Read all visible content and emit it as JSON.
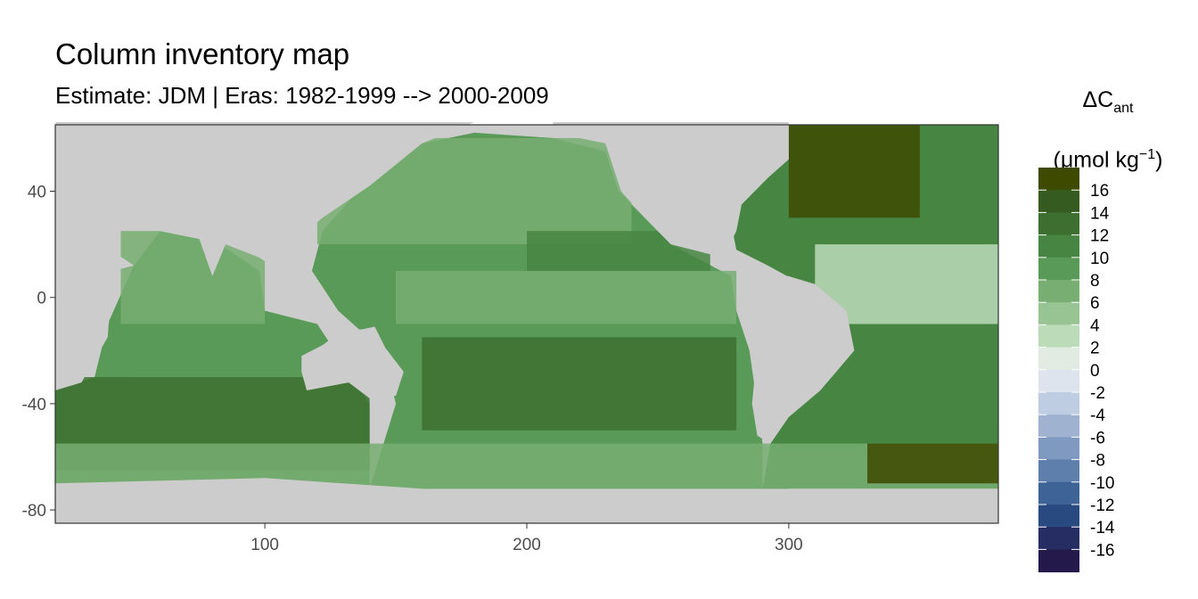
{
  "chart_data": {
    "type": "heatmap",
    "title": "Column inventory map",
    "subtitle": "Estimate: JDM  | Eras: 1982-1999 --> 2000-2009",
    "legend": {
      "title_main": "ΔC",
      "title_sub": "ant",
      "title_unit_open": "(μmol kg",
      "title_unit_sup": "−1",
      "title_unit_close": ")",
      "placement": "right",
      "breaks": [
        16,
        14,
        12,
        10,
        8,
        6,
        4,
        2,
        0,
        -2,
        -4,
        -6,
        -8,
        -10,
        -12,
        -14,
        -16
      ],
      "colors": [
        "#3e4a00",
        "#355b20",
        "#3d7030",
        "#468542",
        "#5a9a58",
        "#78ae72",
        "#98c494",
        "#bcdbb8",
        "#e1ebe1",
        "#dde4ee",
        "#bfcde2",
        "#9fb3d1",
        "#7f99c0",
        "#5e7fab",
        "#3e6396",
        "#284a80",
        "#252d63",
        "#23194a"
      ]
    },
    "x_axis": {
      "ticks": [
        100,
        200,
        300
      ],
      "range": [
        20,
        380
      ]
    },
    "y_axis": {
      "ticks": [
        40,
        0,
        -40,
        -80
      ],
      "range": [
        -85,
        65
      ]
    },
    "colors": {
      "land": "#cccccc",
      "panel_border": "#333333",
      "tick_text": "#4d4d4d"
    },
    "regions": [
      {
        "name": "indian-south",
        "lon": [
          20,
          140
        ],
        "lat": [
          -65,
          -30
        ],
        "value": 12
      },
      {
        "name": "indian-mid",
        "lon": [
          50,
          110
        ],
        "lat": [
          -30,
          -10
        ],
        "value": 9
      },
      {
        "name": "indian-north",
        "lon": [
          45,
          100
        ],
        "lat": [
          -10,
          25
        ],
        "value": 6
      },
      {
        "name": "pacific-north",
        "lon": [
          120,
          240
        ],
        "lat": [
          20,
          60
        ],
        "value": 7
      },
      {
        "name": "pacific-equatorial",
        "lon": [
          150,
          280
        ],
        "lat": [
          -10,
          10
        ],
        "value": 6
      },
      {
        "name": "pacific-subtropical-north",
        "lon": [
          200,
          270
        ],
        "lat": [
          10,
          25
        ],
        "value": 11
      },
      {
        "name": "pacific-south",
        "lon": [
          160,
          280
        ],
        "lat": [
          -50,
          -15
        ],
        "value": 12
      },
      {
        "name": "southern-ocean",
        "lon": [
          20,
          380
        ],
        "lat": [
          -72,
          -55
        ],
        "value": 7
      },
      {
        "name": "atlantic-north",
        "lon": [
          300,
          350
        ],
        "lat": [
          30,
          65
        ],
        "value": 17
      },
      {
        "name": "atlantic-tropical",
        "lon": [
          310,
          380
        ],
        "lat": [
          -10,
          20
        ],
        "value": 3
      },
      {
        "name": "atlantic-south",
        "lon": [
          320,
          380
        ],
        "lat": [
          -50,
          -10
        ],
        "value": 10
      },
      {
        "name": "atlantic-southeast",
        "lon": [
          330,
          380
        ],
        "lat": [
          -70,
          -55
        ],
        "value": 17
      }
    ]
  }
}
